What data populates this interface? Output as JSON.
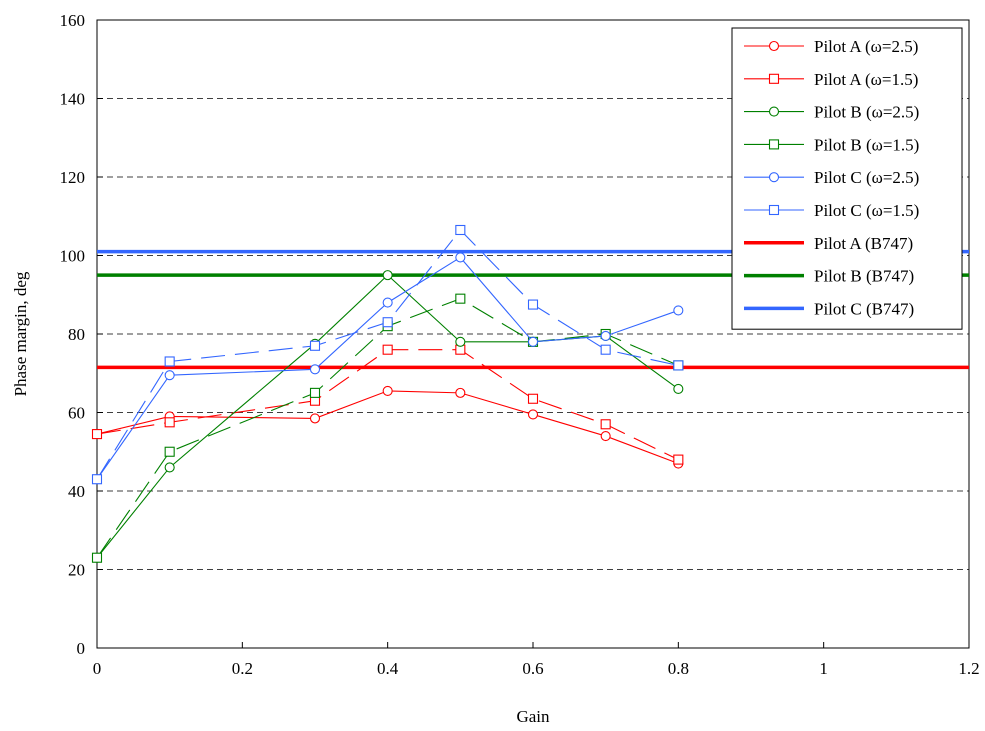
{
  "chart_data": {
    "type": "line",
    "xlabel": "Gain",
    "ylabel": "Phase margin, deg",
    "xlim": [
      0,
      1.2
    ],
    "ylim": [
      0,
      160
    ],
    "xticks": [
      0,
      0.2,
      0.4,
      0.6,
      0.8,
      1,
      1.2
    ],
    "xtick_labels": [
      "0",
      "0.2",
      "0.4",
      "0.6",
      "0.8",
      "1",
      "1.2"
    ],
    "yticks": [
      0,
      20,
      40,
      60,
      80,
      100,
      120,
      140,
      160
    ],
    "ytick_labels": [
      "0",
      "20",
      "40",
      "60",
      "80",
      "100",
      "120",
      "140",
      "160"
    ],
    "grid": "horizontal dashed",
    "legend_position": "top-right",
    "series": [
      {
        "name": "Pilot A (ω=2.5)",
        "color": "#ff0000",
        "marker": "circle",
        "dash": "solid",
        "x": [
          0,
          0.1,
          0.3,
          0.4,
          0.5,
          0.6,
          0.7,
          0.8
        ],
        "y": [
          54.5,
          59,
          58.5,
          65.5,
          65,
          59.5,
          54,
          47
        ]
      },
      {
        "name": "Pilot A (ω=1.5)",
        "color": "#ff0000",
        "marker": "square",
        "dash": "dashed",
        "x": [
          0,
          0.1,
          0.3,
          0.4,
          0.5,
          0.6,
          0.7,
          0.8
        ],
        "y": [
          54.5,
          57.5,
          63,
          76,
          76,
          63.5,
          57,
          48
        ]
      },
      {
        "name": "Pilot B (ω=2.5)",
        "color": "#008000",
        "marker": "circle",
        "dash": "solid",
        "x": [
          0,
          0.1,
          0.3,
          0.4,
          0.5,
          0.6,
          0.7,
          0.8
        ],
        "y": [
          23,
          46,
          77.5,
          95,
          78,
          78,
          79.5,
          66
        ]
      },
      {
        "name": "Pilot B (ω=1.5)",
        "color": "#008000",
        "marker": "square",
        "dash": "dashed",
        "x": [
          0,
          0.1,
          0.3,
          0.4,
          0.5,
          0.6,
          0.7,
          0.8
        ],
        "y": [
          23,
          50,
          65,
          82,
          89,
          78,
          80,
          72
        ]
      },
      {
        "name": "Pilot C (ω=2.5)",
        "color": "#3366ff",
        "marker": "circle",
        "dash": "solid",
        "x": [
          0,
          0.1,
          0.3,
          0.4,
          0.5,
          0.6,
          0.7,
          0.8
        ],
        "y": [
          43,
          69.5,
          71,
          88,
          99.5,
          78,
          79.5,
          86
        ]
      },
      {
        "name": "Pilot C (ω=1.5)",
        "color": "#3366ff",
        "marker": "square",
        "dash": "dashed",
        "x": [
          0,
          0.1,
          0.3,
          0.4,
          0.5,
          0.6,
          0.7,
          0.8
        ],
        "y": [
          43,
          73,
          77,
          83,
          106.5,
          87.5,
          76,
          72
        ]
      }
    ],
    "reference_lines": [
      {
        "name": "Pilot A (B747)",
        "color": "#ff0000",
        "y": 71.5
      },
      {
        "name": "Pilot B (B747)",
        "color": "#008000",
        "y": 95
      },
      {
        "name": "Pilot C (B747)",
        "color": "#3366ff",
        "y": 101
      }
    ]
  }
}
